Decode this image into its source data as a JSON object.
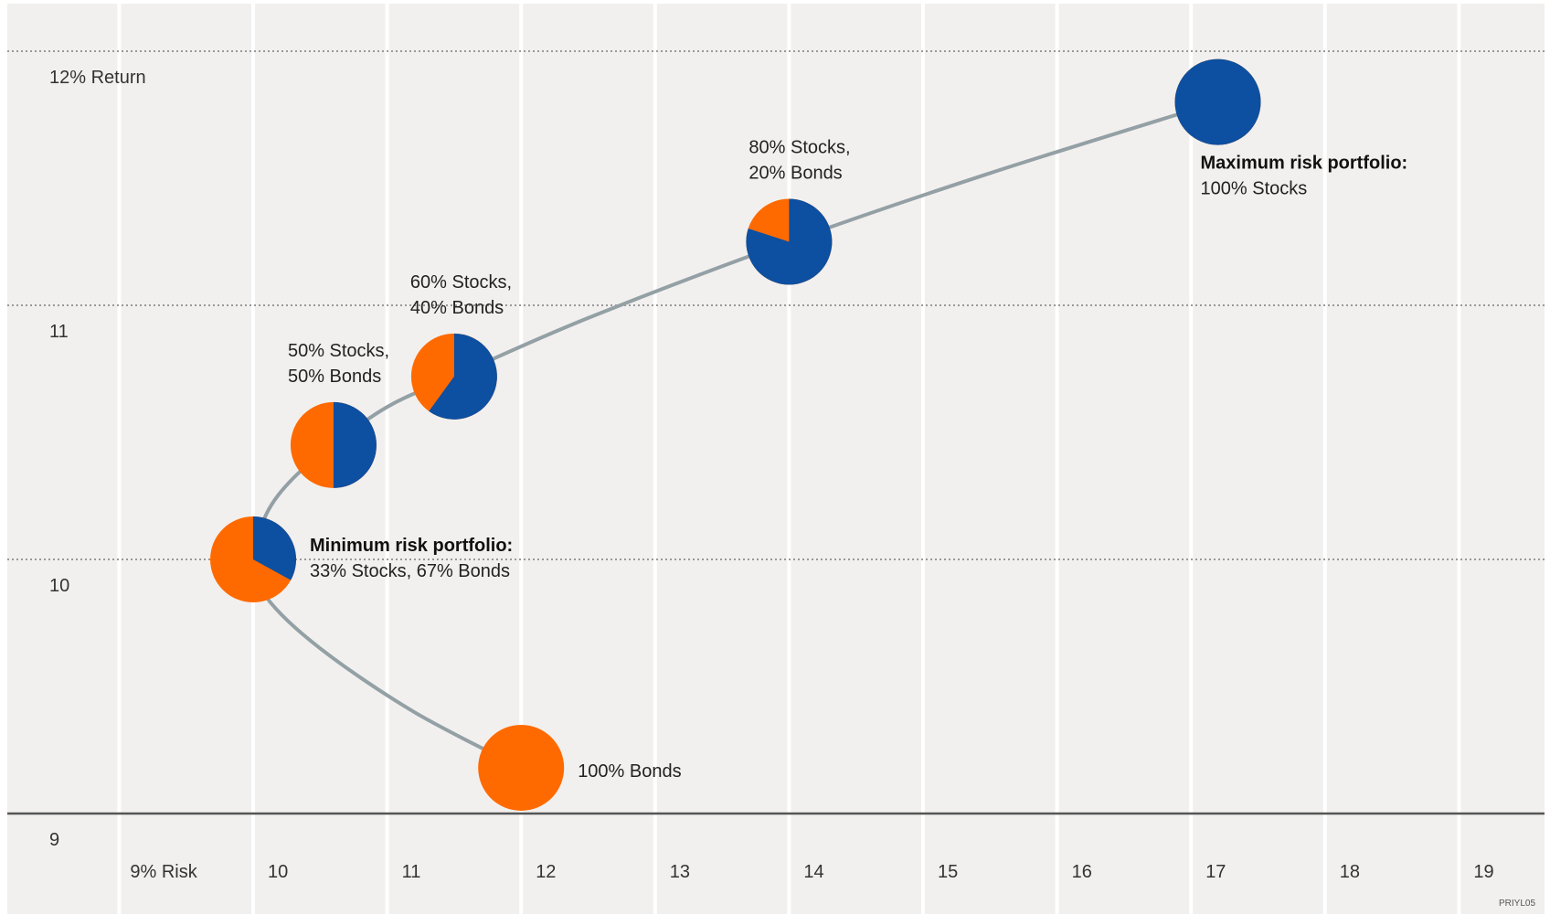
{
  "chart_data": {
    "type": "scatter",
    "x_axis_label": "9% Risk",
    "y_axis_label": "12% Return",
    "xlim": [
      9,
      19.5
    ],
    "ylim": [
      9,
      12.2
    ],
    "x_ticks": [
      "9% Risk",
      "10",
      "11",
      "12",
      "13",
      "14",
      "15",
      "16",
      "17",
      "18",
      "19"
    ],
    "y_ticks": [
      "9",
      "10",
      "11",
      "12% Return"
    ],
    "frontier_curve": [
      {
        "x": 12.0,
        "y": 9.18
      },
      {
        "x": 11.2,
        "y": 9.4
      },
      {
        "x": 10.5,
        "y": 9.65
      },
      {
        "x": 10.1,
        "y": 9.85
      },
      {
        "x": 10.0,
        "y": 10.0
      },
      {
        "x": 10.1,
        "y": 10.18
      },
      {
        "x": 10.3,
        "y": 10.32
      },
      {
        "x": 10.6,
        "y": 10.45
      },
      {
        "x": 11.0,
        "y": 10.6
      },
      {
        "x": 11.5,
        "y": 10.72
      },
      {
        "x": 12.5,
        "y": 10.95
      },
      {
        "x": 14.0,
        "y": 11.25
      },
      {
        "x": 15.5,
        "y": 11.52
      },
      {
        "x": 17.2,
        "y": 11.8
      }
    ],
    "portfolios": [
      {
        "x": 12.0,
        "y": 9.18,
        "stocks_pct": 0,
        "bonds_pct": 100,
        "label_line1": "100% Bonds",
        "label_line2": "",
        "bold": false
      },
      {
        "x": 10.0,
        "y": 10.0,
        "stocks_pct": 33,
        "bonds_pct": 67,
        "label_line1": "Minimum risk portfolio:",
        "label_line2": "33% Stocks, 67% Bonds",
        "bold": true
      },
      {
        "x": 10.6,
        "y": 10.45,
        "stocks_pct": 50,
        "bonds_pct": 50,
        "label_line1": "50% Stocks,",
        "label_line2": "50% Bonds",
        "bold": false
      },
      {
        "x": 11.5,
        "y": 10.72,
        "stocks_pct": 60,
        "bonds_pct": 40,
        "label_line1": "60% Stocks,",
        "label_line2": "40% Bonds",
        "bold": false
      },
      {
        "x": 14.0,
        "y": 11.25,
        "stocks_pct": 80,
        "bonds_pct": 20,
        "label_line1": "80% Stocks,",
        "label_line2": "20% Bonds",
        "bold": false
      },
      {
        "x": 17.2,
        "y": 11.8,
        "stocks_pct": 100,
        "bonds_pct": 0,
        "label_line1": "Maximum risk portfolio:",
        "label_line2": "100% Stocks",
        "bold": true
      }
    ],
    "colors": {
      "stocks": "#0d4fa0",
      "bonds": "#ff6a00",
      "curve": "#93a0a5",
      "background": "#f2f0ee",
      "gridline": "#ffffff",
      "baseline": "#555555",
      "dotted": "#999999"
    },
    "footer_code": "PRIYL05"
  }
}
